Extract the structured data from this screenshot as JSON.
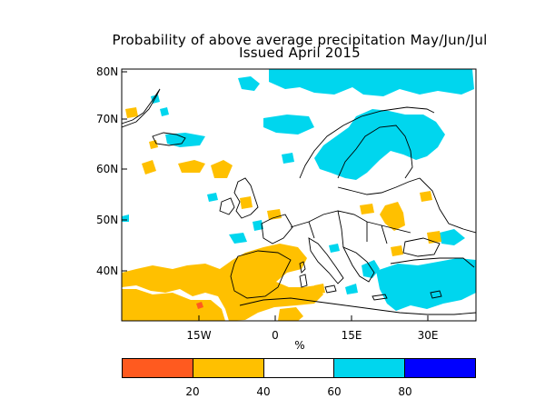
{
  "title": {
    "line1": "Probability of above average precipitation May/Jun/Jul",
    "line2": "Issued April 2015"
  },
  "axes": {
    "y_ticks": [
      "80N",
      "70N",
      "60N",
      "50N",
      "40N"
    ],
    "x_ticks": [
      "15W",
      "0",
      "15E",
      "30E"
    ]
  },
  "colorbar": {
    "unit": "%",
    "ticks": [
      "20",
      "40",
      "60",
      "80"
    ],
    "bins": [
      {
        "range": "0-20",
        "color": "#ff5a1f"
      },
      {
        "range": "20-40",
        "color": "#ffc000"
      },
      {
        "range": "40-60",
        "color": "#ffffff"
      },
      {
        "range": "60-80",
        "color": "#00d6ee"
      },
      {
        "range": "80-100",
        "color": "#0000ff"
      }
    ]
  },
  "colors": {
    "above_normal": "#00d6ee",
    "below_normal": "#ffc000",
    "much_below": "#ff5a1f",
    "coastline": "#000000"
  }
}
